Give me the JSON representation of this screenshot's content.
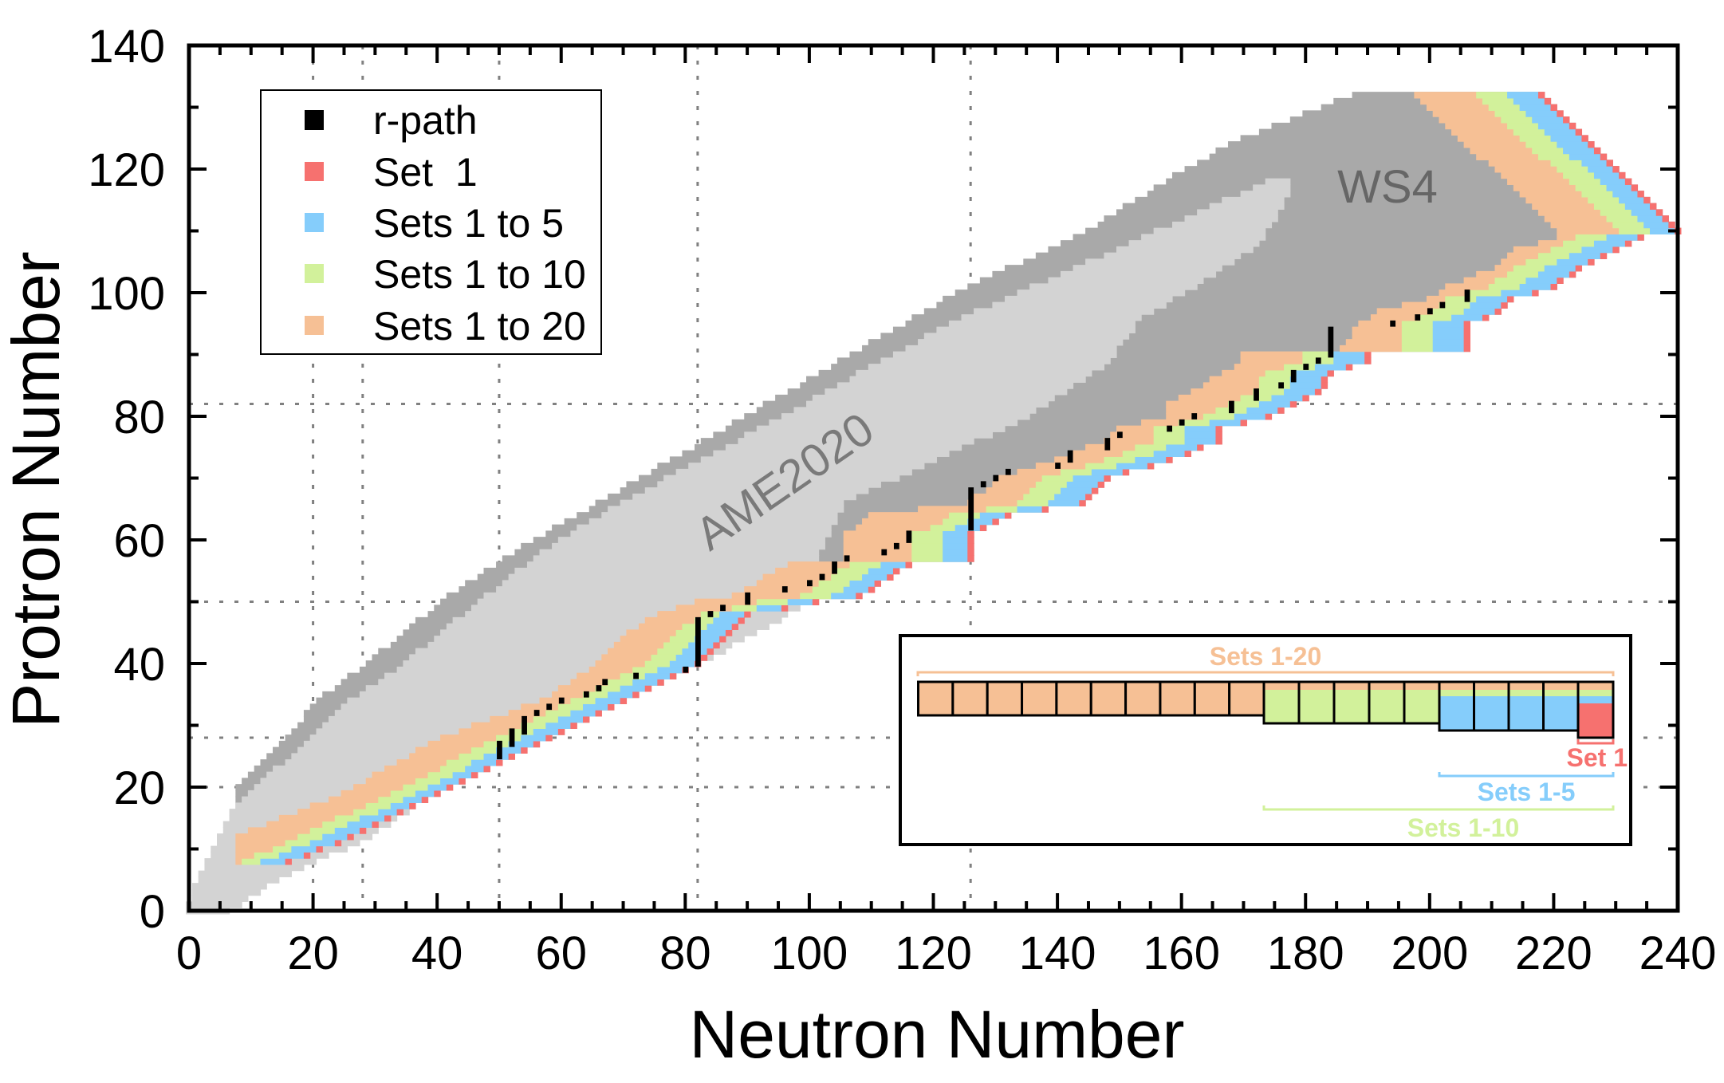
{
  "chart_data": {
    "type": "heatmap",
    "xlabel": "Neutron Number",
    "ylabel": "Protron Number",
    "xlim": [
      0,
      240
    ],
    "ylim": [
      0,
      140
    ],
    "xticks": [
      "0",
      "20",
      "40",
      "60",
      "80",
      "100",
      "120",
      "140",
      "160",
      "180",
      "200",
      "220",
      "240"
    ],
    "yticks": [
      "0",
      "20",
      "40",
      "60",
      "80",
      "100",
      "120",
      "140"
    ],
    "grid": {
      "style": "dotted",
      "neutron_lines": [
        20,
        28,
        50,
        82,
        126
      ],
      "proton_lines": [
        20,
        28,
        50,
        82
      ]
    },
    "colors": {
      "AME2020": "#d3d3d3",
      "WS4": "#a9a9a9",
      "r-path": "#000000",
      "Set 1": "#f6716f",
      "Sets 1 to 5": "#85cdfb",
      "Sets 1 to 10": "#d2f19b",
      "Sets 1 to 20": "#f6c095",
      "grid": "#808080",
      "AME2020_label": "#7a7a7a",
      "WS4_label": "#666666"
    },
    "annotations": {
      "ame": "AME2020",
      "ws4": "WS4"
    },
    "legend": {
      "position": "top-left",
      "items": [
        {
          "label": "r-path",
          "key": "r-path"
        },
        {
          "label": "Set  1",
          "key": "Set 1"
        },
        {
          "label": "Sets 1 to 5",
          "key": "Sets 1 to 5"
        },
        {
          "label": "Sets 1 to 10",
          "key": "Sets 1 to 10"
        },
        {
          "label": "Sets 1 to 20",
          "key": "Sets 1 to 20"
        }
      ]
    },
    "regions_columns": [
      "Z",
      "N_min",
      "N_max"
    ],
    "AME2020_rows": [
      [
        0,
        0,
        6
      ],
      [
        4,
        1,
        12
      ],
      [
        8,
        3,
        20
      ],
      [
        12,
        5,
        29
      ],
      [
        17,
        8,
        36
      ],
      [
        20,
        11,
        40
      ],
      [
        28,
        20,
        58
      ],
      [
        34,
        26,
        70
      ],
      [
        40,
        35,
        82
      ],
      [
        50,
        47,
        100
      ],
      [
        57,
        56,
        101
      ],
      [
        60,
        60,
        102
      ],
      [
        66,
        70,
        105
      ],
      [
        80,
        96,
        135
      ],
      [
        89,
        112,
        148
      ],
      [
        96,
        125,
        153
      ],
      [
        100,
        134,
        160
      ],
      [
        108,
        152,
        172
      ],
      [
        114,
        165,
        176
      ],
      [
        118,
        174,
        177
      ]
    ],
    "WS4_rows_columns": [
      "Z",
      "N_min"
    ],
    "WS4_rows": [
      [
        8,
        8
      ],
      [
        14,
        8
      ],
      [
        20,
        8
      ],
      [
        28,
        16
      ],
      [
        34,
        21
      ],
      [
        40,
        29
      ],
      [
        50,
        41
      ],
      [
        57,
        51
      ],
      [
        60,
        56
      ],
      [
        80,
        90
      ],
      [
        100,
        124
      ],
      [
        110,
        145
      ],
      [
        120,
        161
      ],
      [
        125,
        170
      ],
      [
        132,
        188
      ]
    ],
    "sets_columns": [
      "Z",
      "Set 1 N",
      "Sets 1 to 5 N_min",
      "Sets 1 to 10 N_min",
      "Sets 1 to 20 N_min"
    ],
    "sets_rows": [
      [
        8,
        16,
        12,
        9,
        8
      ],
      [
        12,
        26,
        22,
        18,
        8
      ],
      [
        19,
        40,
        37,
        33,
        25
      ],
      [
        28,
        58,
        54,
        50,
        41
      ],
      [
        34,
        70,
        66,
        62,
        57
      ],
      [
        40,
        82,
        78,
        74,
        66
      ],
      [
        45,
        87,
        83,
        79,
        71
      ],
      [
        48,
        90,
        86,
        83,
        76
      ],
      [
        50,
        101,
        97,
        92,
        82
      ],
      [
        51,
        108,
        104,
        99,
        88
      ],
      [
        56,
        116,
        112,
        107,
        97
      ],
      [
        57,
        126,
        122,
        117,
        106
      ],
      [
        61,
        126,
        122,
        117,
        106
      ],
      [
        62,
        128,
        124,
        120,
        108
      ],
      [
        64,
        132,
        128,
        123,
        110
      ],
      [
        66,
        144,
        139,
        134,
        126
      ],
      [
        70,
        148,
        143,
        138,
        131
      ],
      [
        73,
        158,
        153,
        148,
        140
      ],
      [
        76,
        166,
        161,
        156,
        148
      ],
      [
        78,
        166,
        161,
        156,
        150
      ],
      [
        80,
        174,
        169,
        164,
        158
      ],
      [
        82,
        178,
        173,
        168,
        158
      ],
      [
        84,
        182,
        177,
        172,
        162
      ],
      [
        87,
        184,
        179,
        174,
        167
      ],
      [
        89,
        190,
        185,
        180,
        170
      ],
      [
        90,
        190,
        185,
        180,
        170
      ],
      [
        91,
        206,
        201,
        196,
        186
      ],
      [
        95,
        206,
        201,
        196,
        189
      ],
      [
        97,
        211,
        206,
        201,
        192
      ],
      [
        99,
        213,
        208,
        203,
        200
      ],
      [
        101,
        220,
        215,
        210,
        203
      ],
      [
        104,
        224,
        219,
        214,
        211
      ],
      [
        107,
        230,
        225,
        220,
        214
      ],
      [
        109,
        234,
        229,
        224,
        221
      ],
      [
        110,
        240,
        236,
        231,
        221
      ],
      [
        132,
        218,
        213,
        208,
        198
      ]
    ],
    "r_path_columns": [
      "N",
      "Z_min",
      "Z_max"
    ],
    "r_path": [
      [
        50,
        25,
        27
      ],
      [
        52,
        27,
        29
      ],
      [
        54,
        29,
        31
      ],
      [
        56,
        32,
        32
      ],
      [
        58,
        33,
        33
      ],
      [
        60,
        34,
        34
      ],
      [
        64,
        35,
        35
      ],
      [
        66,
        36,
        36
      ],
      [
        67,
        37,
        37
      ],
      [
        72,
        38,
        38
      ],
      [
        80,
        39,
        39
      ],
      [
        82,
        40,
        47
      ],
      [
        84,
        48,
        48
      ],
      [
        86,
        49,
        49
      ],
      [
        90,
        50,
        51
      ],
      [
        96,
        52,
        52
      ],
      [
        100,
        53,
        53
      ],
      [
        102,
        54,
        54
      ],
      [
        104,
        55,
        56
      ],
      [
        106,
        57,
        57
      ],
      [
        112,
        58,
        58
      ],
      [
        114,
        59,
        59
      ],
      [
        116,
        60,
        61
      ],
      [
        126,
        62,
        68
      ],
      [
        128,
        69,
        69
      ],
      [
        130,
        70,
        70
      ],
      [
        132,
        71,
        71
      ],
      [
        140,
        72,
        72
      ],
      [
        142,
        73,
        74
      ],
      [
        148,
        75,
        76
      ],
      [
        150,
        77,
        77
      ],
      [
        158,
        78,
        78
      ],
      [
        160,
        79,
        79
      ],
      [
        162,
        80,
        80
      ],
      [
        168,
        81,
        82
      ],
      [
        172,
        83,
        84
      ],
      [
        176,
        85,
        85
      ],
      [
        178,
        86,
        87
      ],
      [
        180,
        88,
        88
      ],
      [
        182,
        89,
        89
      ],
      [
        184,
        90,
        94
      ],
      [
        194,
        95,
        95
      ],
      [
        198,
        96,
        96
      ],
      [
        200,
        97,
        97
      ],
      [
        202,
        98,
        98
      ],
      [
        206,
        99,
        100
      ]
    ]
  },
  "inset": {
    "sets_1_20": "Sets 1-20",
    "set_1": "Set 1",
    "sets_1_5": "Sets 1-5",
    "sets_1_10": "Sets 1-10"
  }
}
